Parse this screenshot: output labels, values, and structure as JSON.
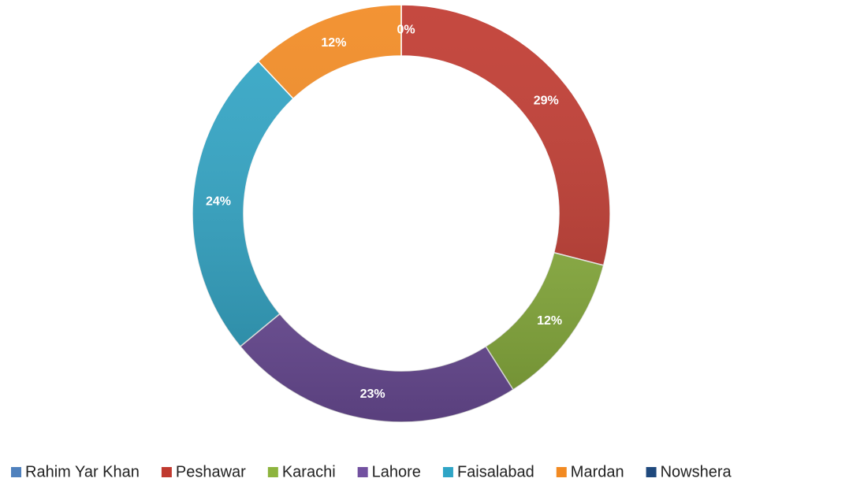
{
  "chart_data": {
    "type": "donut",
    "categories": [
      "Rahim Yar Khan",
      "Peshawar",
      "Karachi",
      "Lahore",
      "Faisalabad",
      "Mardan",
      "Nowshera"
    ],
    "values": [
      0,
      29,
      12,
      23,
      24,
      12,
      0
    ],
    "value_labels": [
      "0%",
      "29%",
      "12%",
      "23%",
      "24%",
      "12%",
      null
    ],
    "colors": [
      "#4f81bd",
      "#c0392f",
      "#8db43e",
      "#7251a0",
      "#2fa5c6",
      "#f28a22",
      "#1f497d"
    ],
    "legend": "bottom"
  }
}
